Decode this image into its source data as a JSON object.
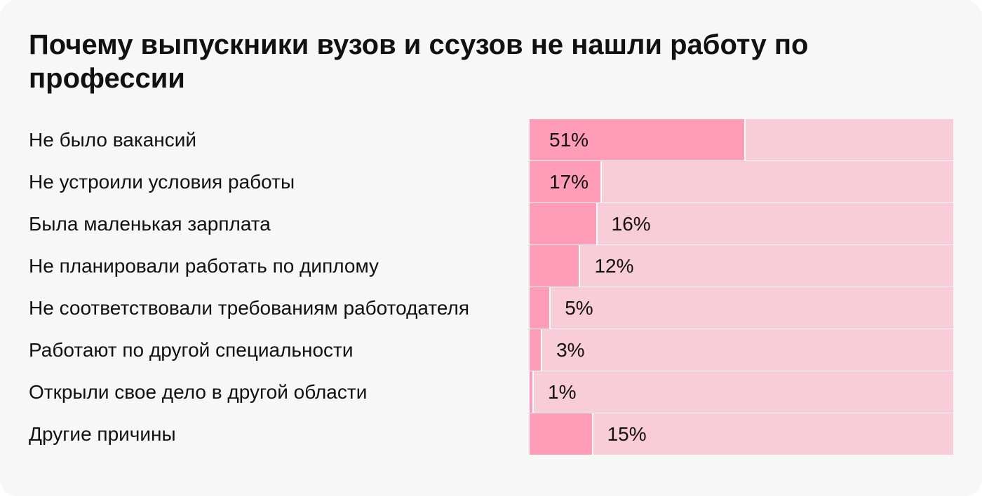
{
  "chart_data": {
    "type": "bar",
    "orientation": "horizontal",
    "title": "Почему выпускники вузов и ссузов не нашли работу по профессии",
    "categories": [
      "Не было вакансий",
      "Не устроили условия работы",
      "Была маленькая зарплата",
      "Не планировали работать по диплому",
      "Не соответствовали требованиям работодателя",
      "Работают по другой специальности",
      "Открыли свое дело в другой области",
      "Другие причины"
    ],
    "values": [
      51,
      17,
      16,
      12,
      5,
      3,
      1,
      15
    ],
    "value_labels": [
      "51%",
      "17%",
      "16%",
      "12%",
      "5%",
      "3%",
      "1%",
      "15%"
    ],
    "xlim": [
      0,
      100
    ],
    "grid": false,
    "legend": "none",
    "colors": {
      "bar": "#ff9db8",
      "track": "#f8cdd7",
      "background": "#f7f7f7",
      "text": "#111111"
    }
  }
}
